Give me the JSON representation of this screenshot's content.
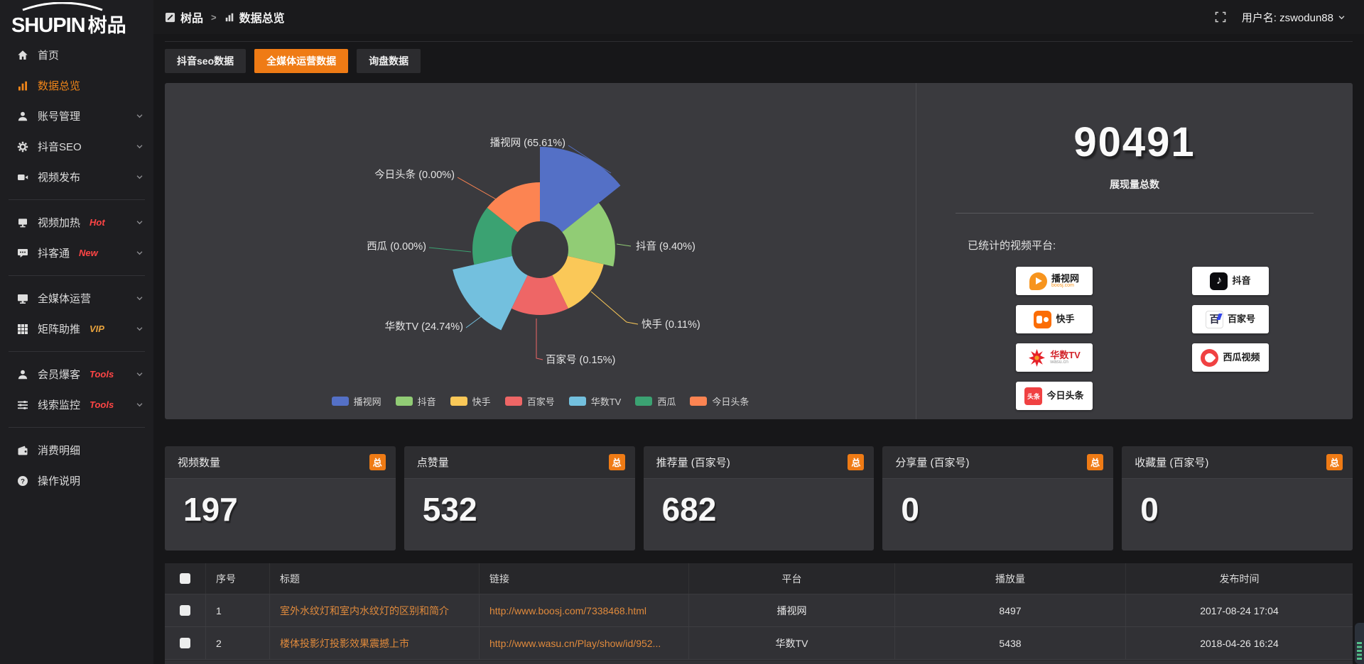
{
  "brand": {
    "logo_en": "SHUPIN",
    "logo_cn": "树品"
  },
  "topbar": {
    "breadcrumb": [
      {
        "label": "树品"
      },
      {
        "label": "数据总览"
      }
    ],
    "separator": ">",
    "user_label": "用户名: zswodun88"
  },
  "sidebar": {
    "items": [
      {
        "type": "item",
        "icon": "home-icon",
        "label": "首页"
      },
      {
        "type": "item",
        "icon": "bar-chart-icon",
        "label": "数据总览",
        "active": true
      },
      {
        "type": "item",
        "icon": "user-icon",
        "label": "账号管理",
        "chevron": true
      },
      {
        "type": "item",
        "icon": "gear-icon",
        "label": "抖音SEO",
        "chevron": true
      },
      {
        "type": "item",
        "icon": "video-icon",
        "label": "视频发布",
        "chevron": true
      },
      {
        "type": "divider"
      },
      {
        "type": "item",
        "icon": "screen-icon",
        "label": "视频加热",
        "badge": "Hot",
        "badge_color": "#ff4545",
        "chevron": true
      },
      {
        "type": "item",
        "icon": "chat-icon",
        "label": "抖客通",
        "badge": "New",
        "badge_color": "#ff4545",
        "chevron": true
      },
      {
        "type": "divider"
      },
      {
        "type": "item",
        "icon": "monitor-icon",
        "label": "全媒体运营",
        "chevron": true
      },
      {
        "type": "item",
        "icon": "grid-icon",
        "label": "矩阵助推",
        "badge": "VIP",
        "badge_color": "#e7a23d",
        "chevron": true
      },
      {
        "type": "divider"
      },
      {
        "type": "item",
        "icon": "user-icon",
        "label": "会员爆客",
        "badge": "Tools",
        "badge_color": "#ff4545",
        "chevron": true
      },
      {
        "type": "item",
        "icon": "sliders-icon",
        "label": "线索监控",
        "badge": "Tools",
        "badge_color": "#ff4545",
        "chevron": true
      },
      {
        "type": "divider"
      },
      {
        "type": "item",
        "icon": "wallet-icon",
        "label": "消费明细"
      },
      {
        "type": "item",
        "icon": "question-icon",
        "label": "操作说明"
      }
    ]
  },
  "tabs": [
    {
      "label": "抖音seo数据",
      "active": false
    },
    {
      "label": "全媒体运营数据",
      "active": true
    },
    {
      "label": "询盘数据",
      "active": false
    }
  ],
  "chart_data": {
    "type": "pie",
    "variant": "nightingale_rose",
    "unit": "%",
    "label_format": "{name} ({value}%)",
    "legend_position": "bottom",
    "series": [
      {
        "name": "播视网",
        "value": 65.61,
        "color": "#5470c6",
        "display_label": "播视网 (65.61%)"
      },
      {
        "name": "抖音",
        "value": 9.4,
        "color": "#91cc75",
        "display_label": "抖音 (9.40%)"
      },
      {
        "name": "快手",
        "value": 0.11,
        "color": "#fac858",
        "display_label": "快手 (0.11%)"
      },
      {
        "name": "百家号",
        "value": 0.15,
        "color": "#ee6666",
        "display_label": "百家号 (0.15%)"
      },
      {
        "name": "华数TV",
        "value": 24.74,
        "color": "#73c0de",
        "display_label": "华数TV (24.74%)"
      },
      {
        "name": "西瓜",
        "value": 0.0,
        "color": "#3ba272",
        "display_label": "西瓜 (0.00%)"
      },
      {
        "name": "今日头条",
        "value": 0.0,
        "color": "#fc8452",
        "display_label": "今日头条 (0.00%)"
      }
    ]
  },
  "overview": {
    "total_value": "90491",
    "total_label": "展现量总数",
    "platforms_title": "已统计的视频平台:",
    "platform_columns": {
      "left": [
        {
          "name": "播视网",
          "subtitle": "boosj.com",
          "icon": "boosj-icon"
        },
        {
          "name": "快手",
          "icon": "kuaishou-icon"
        },
        {
          "name": "华数TV",
          "subtitle": "wasu.cn",
          "icon": "wasu-icon",
          "name_red": true
        },
        {
          "name": "今日头条",
          "icon": "toutiao-icon",
          "icon_text": "头条"
        }
      ],
      "right": [
        {
          "name": "抖音",
          "icon": "douyin-icon"
        },
        {
          "name": "百家号",
          "icon": "baijiahao-icon",
          "icon_text": "百"
        },
        {
          "name": "西瓜视频",
          "icon": "xigua-icon"
        }
      ]
    }
  },
  "stat_cards": [
    {
      "title": "视频数量",
      "badge": "总",
      "value": "197"
    },
    {
      "title": "点赞量",
      "badge": "总",
      "value": "532"
    },
    {
      "title": "推荐量 (百家号)",
      "badge": "总",
      "value": "682"
    },
    {
      "title": "分享量 (百家号)",
      "badge": "总",
      "value": "0"
    },
    {
      "title": "收藏量 (百家号)",
      "badge": "总",
      "value": "0"
    }
  ],
  "table": {
    "columns": [
      "",
      "序号",
      "标题",
      "链接",
      "平台",
      "播放量",
      "发布时间"
    ],
    "rows": [
      {
        "checked": true,
        "no": "1",
        "title": "室外水纹灯和室内水纹灯的区别和简介",
        "link": "http://www.boosj.com/7338468.html",
        "platform": "播视网",
        "plays": "8497",
        "published": "2017-08-24 17:04"
      },
      {
        "checked": true,
        "no": "2",
        "title": "楼体投影灯投影效果震撼上市",
        "link": "http://www.wasu.cn/Play/show/id/952...",
        "platform": "华数TV",
        "plays": "5438",
        "published": "2018-04-26 16:24"
      }
    ]
  },
  "colors": {
    "accent": "#ef7b15",
    "link": "#e08a3c",
    "badge_red": "#ff4545",
    "badge_yellow": "#e7a23d"
  }
}
